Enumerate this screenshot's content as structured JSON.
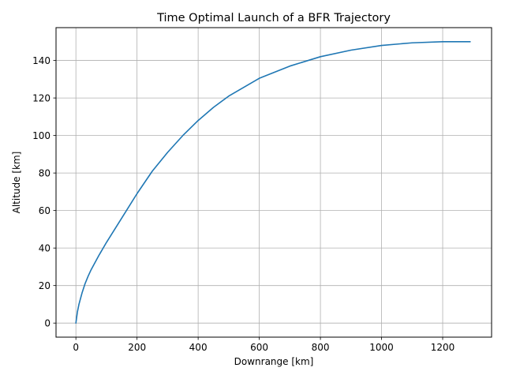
{
  "chart_data": {
    "type": "line",
    "title": "Time Optimal Launch of a BFR Trajectory",
    "xlabel": "Downrange [km]",
    "ylabel": "Altitude [km]",
    "xlim": [
      -65,
      1360
    ],
    "ylim": [
      -7.5,
      157.5
    ],
    "xticks": [
      0,
      200,
      400,
      600,
      800,
      1000,
      1200
    ],
    "yticks": [
      0,
      20,
      40,
      60,
      80,
      100,
      120,
      140
    ],
    "grid": true,
    "series": [
      {
        "color": "#1f77b4",
        "x": [
          0,
          5,
          10,
          20,
          30,
          40,
          50,
          75,
          100,
          150,
          200,
          250,
          300,
          350,
          400,
          450,
          500,
          600,
          700,
          800,
          900,
          1000,
          1100,
          1200,
          1250,
          1290
        ],
        "y": [
          0,
          6,
          10,
          16,
          21,
          25,
          28.5,
          36,
          43,
          56,
          69,
          81,
          91,
          100,
          108,
          115,
          121,
          130.5,
          137,
          142,
          145.5,
          148,
          149.4,
          150,
          150,
          150
        ]
      }
    ]
  }
}
